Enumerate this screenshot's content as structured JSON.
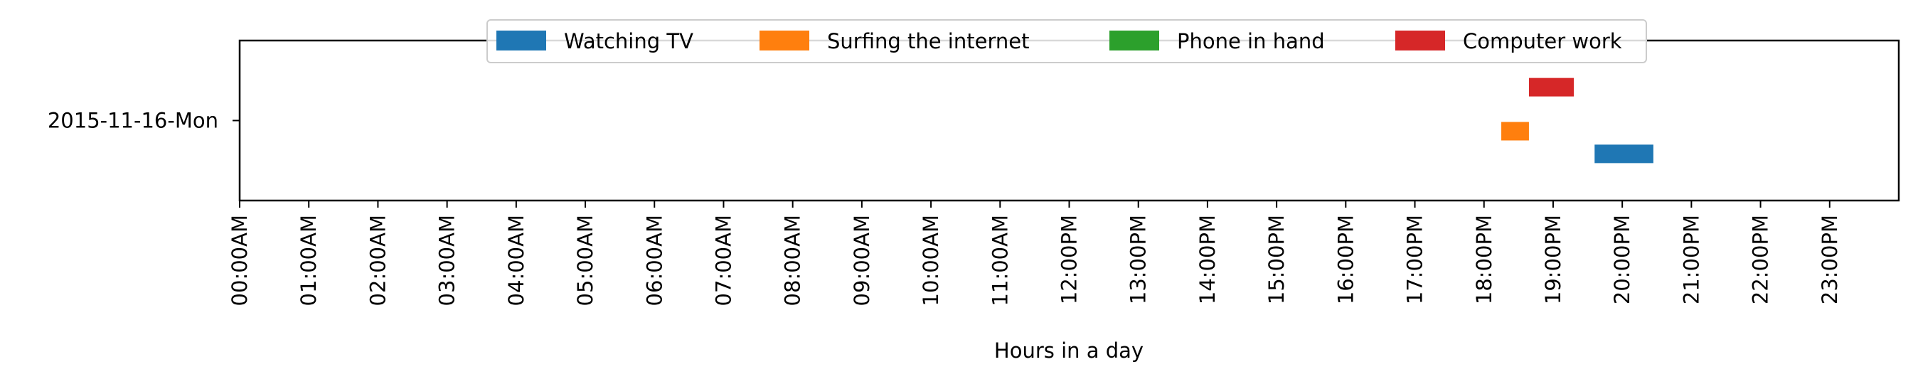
{
  "chart_data": {
    "type": "timeline",
    "title": "",
    "xlabel": "Hours in a day",
    "ylabel": "",
    "xlim": [
      0,
      24
    ],
    "ylim": [
      -0.6,
      0.6
    ],
    "grid": false,
    "legend_placement": "top-center",
    "categories": [
      "2015-11-16-Mon"
    ],
    "x_tick_labels": [
      "00:00AM",
      "01:00AM",
      "02:00AM",
      "03:00AM",
      "04:00AM",
      "05:00AM",
      "06:00AM",
      "07:00AM",
      "08:00AM",
      "09:00AM",
      "10:00AM",
      "11:00AM",
      "12:00PM",
      "13:00PM",
      "14:00PM",
      "15:00PM",
      "16:00PM",
      "17:00PM",
      "18:00PM",
      "19:00PM",
      "20:00PM",
      "21:00PM",
      "22:00PM",
      "23:00PM"
    ],
    "series": [
      {
        "name": "Watching TV",
        "color": "#1f77b4",
        "intervals": [
          {
            "day": "2015-11-16-Mon",
            "start": 19.6,
            "end": 20.45,
            "lane": -0.25
          }
        ]
      },
      {
        "name": "Surfing the internet",
        "color": "#ff7f0e",
        "intervals": [
          {
            "day": "2015-11-16-Mon",
            "start": 18.25,
            "end": 18.65,
            "lane": -0.08
          }
        ]
      },
      {
        "name": "Phone in hand",
        "color": "#2ca02c",
        "intervals": []
      },
      {
        "name": "Computer work",
        "color": "#d62728",
        "intervals": [
          {
            "day": "2015-11-16-Mon",
            "start": 18.65,
            "end": 19.3,
            "lane": 0.25
          }
        ]
      }
    ]
  }
}
